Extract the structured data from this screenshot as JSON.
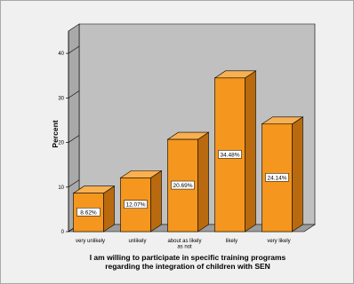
{
  "chart_data": {
    "type": "bar",
    "categories": [
      "very unlikely",
      "unlikely",
      "about as likely as not",
      "likely",
      "very likely"
    ],
    "category_lines": [
      [
        "very unlikely"
      ],
      [
        "unlikely"
      ],
      [
        "about as likely",
        "as not"
      ],
      [
        "likely"
      ],
      [
        "very likely"
      ]
    ],
    "values": [
      8.62,
      12.07,
      20.69,
      34.48,
      24.14
    ],
    "data_labels": [
      "8.62%",
      "12.07%",
      "20.69%",
      "34.48%",
      "24.14%"
    ],
    "ylabel": "Percent",
    "xlabel_lines": [
      "I am willing to participate in specific training programs",
      "regarding the integration of children with SEN"
    ],
    "ylim": [
      0,
      45
    ],
    "yticks": [
      0,
      10,
      20,
      30,
      40
    ],
    "grid": false,
    "style": "3d",
    "colors": {
      "bar_front": "#f5961e",
      "bar_side": "#b96a0e",
      "bar_top": "#f8b050",
      "back_wall": "#c0c0c0",
      "side_wall": "#a9a9a9",
      "floor": "#9c9c9c",
      "frame": "#f0f0f0"
    }
  }
}
